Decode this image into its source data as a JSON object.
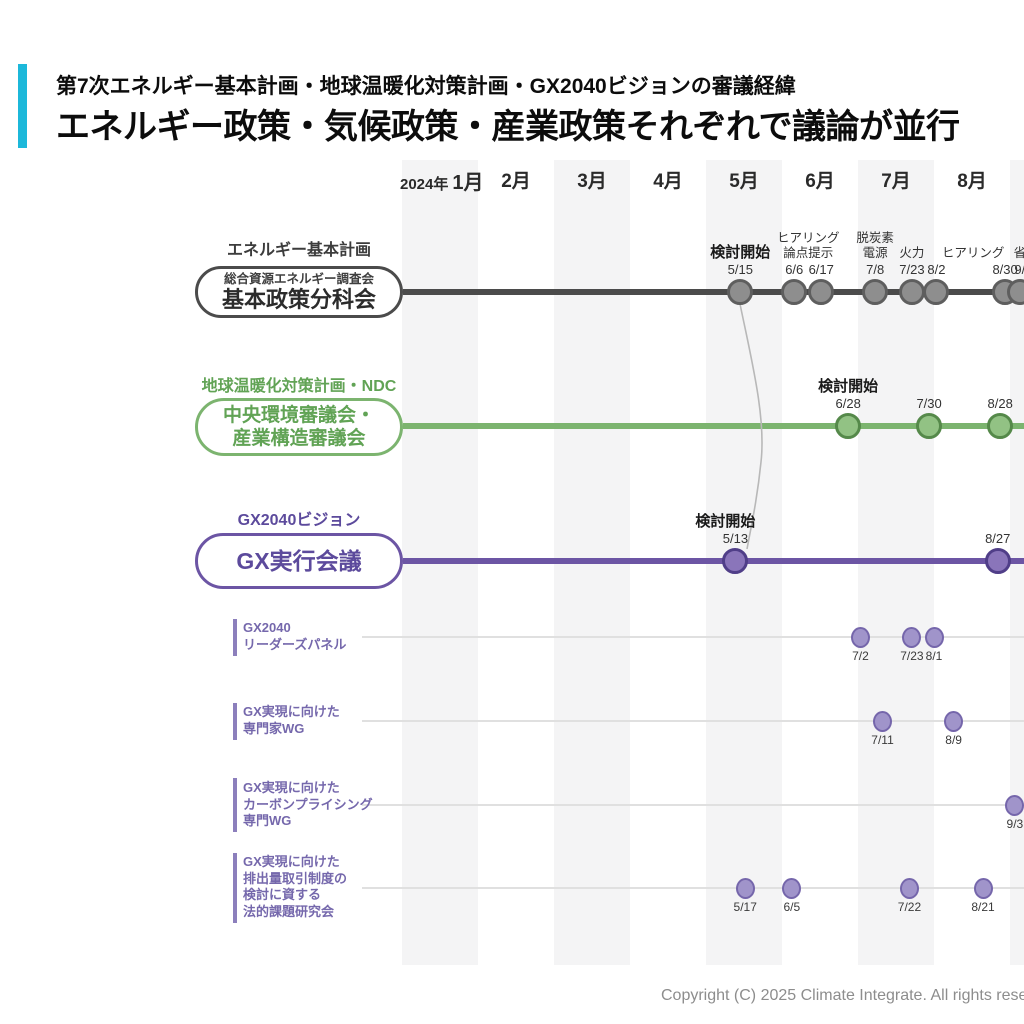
{
  "header": {
    "kicker": "第7次エネルギー基本計画・地球温暖化対策計画・GX2040ビジョンの審議経緯",
    "title": "エネルギー政策・気候政策・産業政策それぞれで議論が並行",
    "accent_color": "#1cb8da"
  },
  "footer": {
    "copyright": "Copyright (C) 2025 Climate Integrate. All rights reserved."
  },
  "chart_data": {
    "type": "timeline",
    "axis": {
      "year_label": "2024年",
      "months": [
        "1月",
        "2月",
        "3月",
        "4月",
        "5月",
        "6月",
        "7月",
        "8月"
      ],
      "shaded_months": [
        1,
        3,
        5,
        7,
        9
      ]
    },
    "timelines": [
      {
        "category": "エネルギー基本計画",
        "body": [
          "総合資源エネルギー調査会",
          "基本政策分科会"
        ],
        "line_color": "#4b4b4b",
        "dot_fill": "#8e8e8e",
        "dot_stroke": "#5e5e5e",
        "text_color": "#3c3c3c",
        "events": [
          {
            "date": "5/15",
            "note": "検討開始",
            "bold": true
          },
          {
            "date": "6/6",
            "note": "ヒアリング\n論点提示",
            "note_dx": 14
          },
          {
            "date": "6/17"
          },
          {
            "date": "7/8",
            "note": "脱炭素\n電源"
          },
          {
            "date": "7/23",
            "note": "火力"
          },
          {
            "date": "8/2"
          },
          {
            "date": "8/30",
            "note": "ヒアリング",
            "note_dx": -32
          },
          {
            "date": "9/",
            "note": "省"
          }
        ]
      },
      {
        "category": "地球温暖化対策計画・NDC",
        "body": [
          "中央環境審議会・",
          "産業構造審議会"
        ],
        "line_color": "#7cb46f",
        "dot_fill": "#92c284",
        "dot_stroke": "#55894a",
        "text_color": "#61a355",
        "events": [
          {
            "date": "6/28",
            "note": "検討開始",
            "bold": true
          },
          {
            "date": "7/30"
          },
          {
            "date": "8/28"
          }
        ]
      },
      {
        "category": "GX2040ビジョン",
        "body": [
          "GX実行会議"
        ],
        "line_color": "#6c55a4",
        "dot_fill": "#8a75ba",
        "dot_stroke": "#503e88",
        "text_color": "#5c4a9c",
        "events": [
          {
            "date": "5/13",
            "note": "検討開始",
            "bold": true,
            "note_dx": -10
          },
          {
            "date": "8/27"
          }
        ]
      }
    ],
    "sub_timelines": [
      {
        "label": [
          "GX2040",
          "リーダーズパネル"
        ],
        "events": [
          {
            "date": "7/2"
          },
          {
            "date": "7/23"
          },
          {
            "date": "8/1"
          }
        ]
      },
      {
        "label": [
          "GX実現に向けた",
          "専門家WG"
        ],
        "events": [
          {
            "date": "7/11"
          },
          {
            "date": "8/9"
          }
        ]
      },
      {
        "label": [
          "GX実現に向けた",
          "カーボンプライシング",
          "専門WG"
        ],
        "events": [
          {
            "date": "9/3"
          }
        ]
      },
      {
        "label": [
          "GX実現に向けた",
          "排出量取引制度の",
          "検討に資する",
          "法的課題研究会"
        ],
        "events": [
          {
            "date": "5/17"
          },
          {
            "date": "6/5"
          },
          {
            "date": "7/22"
          },
          {
            "date": "8/21"
          }
        ]
      }
    ],
    "sub_style": {
      "line_color": "#e0e0e0",
      "dot_fill": "#a094ca",
      "dot_stroke": "#7566ab",
      "text_color": "#7568ac",
      "bar_color": "#8c7fbc"
    },
    "connector": {
      "from": "エネルギー基本計画 5/15",
      "to": "GX実行会議 5/13"
    }
  }
}
